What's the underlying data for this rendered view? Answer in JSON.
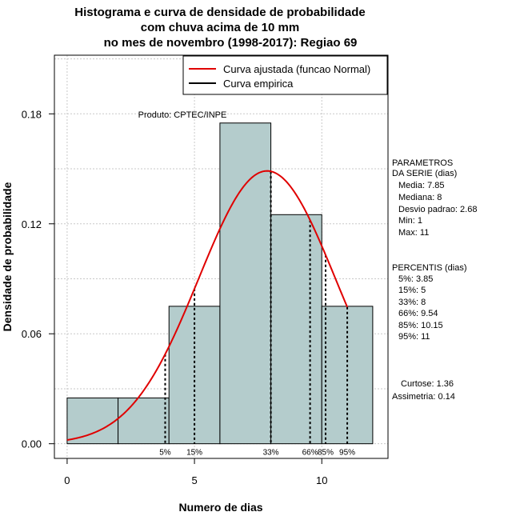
{
  "chart_data": {
    "type": "bar",
    "title_lines": [
      "Histograma e curva de densidade de probabilidade",
      "com chuva acima de 10 mm",
      "no mes de novembro (1998-2017): Regiao 69"
    ],
    "xlabel": "Numero de dias",
    "ylabel": "Densidade de probabilidade",
    "xlim": [
      -0.5,
      12.6
    ],
    "ylim": [
      -0.008,
      0.212
    ],
    "x_ticks": [
      0,
      5,
      10
    ],
    "y_ticks": [
      0.0,
      0.06,
      0.12,
      0.18
    ],
    "y_tick_labels": [
      "0.00",
      "0.06",
      "0.12",
      "0.18"
    ],
    "bins": [
      {
        "x0": 0,
        "x1": 2,
        "density": 0.025
      },
      {
        "x0": 2,
        "x1": 4,
        "density": 0.025
      },
      {
        "x0": 4,
        "x1": 6,
        "density": 0.075
      },
      {
        "x0": 6,
        "x1": 8,
        "density": 0.175
      },
      {
        "x0": 8,
        "x1": 10,
        "density": 0.125
      },
      {
        "x0": 10,
        "x1": 12,
        "density": 0.075
      }
    ],
    "bar_color": "#b4cccc",
    "normal_curve": {
      "mean": 7.85,
      "sd": 2.68,
      "x_range": [
        0,
        11
      ],
      "color": "#e00000"
    },
    "percentile_lines": [
      {
        "label": "5%",
        "x": 3.85
      },
      {
        "label": "15%",
        "x": 5
      },
      {
        "label": "33%",
        "x": 8
      },
      {
        "label": "66%",
        "x": 9.54
      },
      {
        "label": "85%",
        "x": 10.15
      },
      {
        "label": "95%",
        "x": 11
      }
    ],
    "legend": [
      {
        "label": "Curva ajustada (funcao Normal)",
        "color": "#e00000"
      },
      {
        "label": "Curva empirica",
        "color": "#000000"
      }
    ],
    "source_note": "Produto: CPTEC/INPE",
    "side_panel": {
      "params_lines": [
        "PARAMETROS",
        "DA SERIE (dias)",
        "Media: 7.85",
        "Mediana: 8",
        "Desvio padrao: 2.68",
        "Min: 1",
        "Max: 11"
      ],
      "percentis_lines": [
        "PERCENTIS (dias)",
        "5%: 3.85",
        "15%: 5",
        "33%: 8",
        "66%: 9.54",
        "85%: 10.15",
        "95%: 11"
      ],
      "stats_lines": [
        "Curtose: 1.36",
        "Assimetria: 0.14"
      ]
    }
  }
}
